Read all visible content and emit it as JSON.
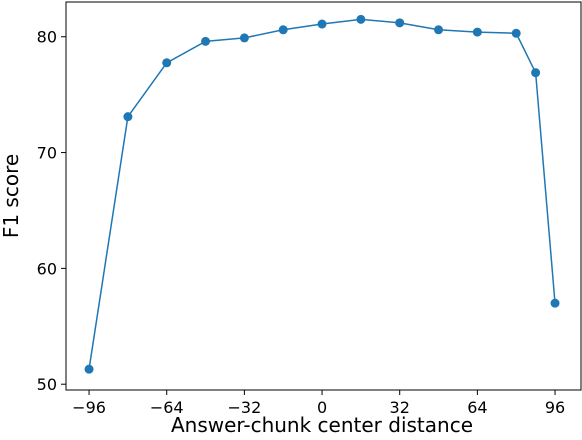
{
  "chart_data": {
    "type": "line",
    "x_label": "Answer-chunk center distance",
    "y_label": "F1 score",
    "x": [
      -96,
      -80,
      -64,
      -48,
      -32,
      -16,
      0,
      16,
      32,
      48,
      64,
      80,
      88,
      96
    ],
    "series": [
      {
        "color": "#1f77b4",
        "values": [
          51.3,
          73.1,
          77.75,
          79.6,
          79.9,
          80.6,
          81.1,
          81.5,
          81.2,
          80.6,
          80.4,
          80.3,
          76.9,
          57.0
        ]
      }
    ],
    "xlim": [
      -105.5,
      106.7
    ],
    "ylim": [
      49.5,
      83.0
    ],
    "xticks": [
      {
        "value": -96,
        "label": "−96"
      },
      {
        "value": -64,
        "label": "−64"
      },
      {
        "value": -32,
        "label": "−32"
      },
      0,
      32,
      64,
      96
    ],
    "yticks": [
      50,
      60,
      70,
      80
    ]
  }
}
